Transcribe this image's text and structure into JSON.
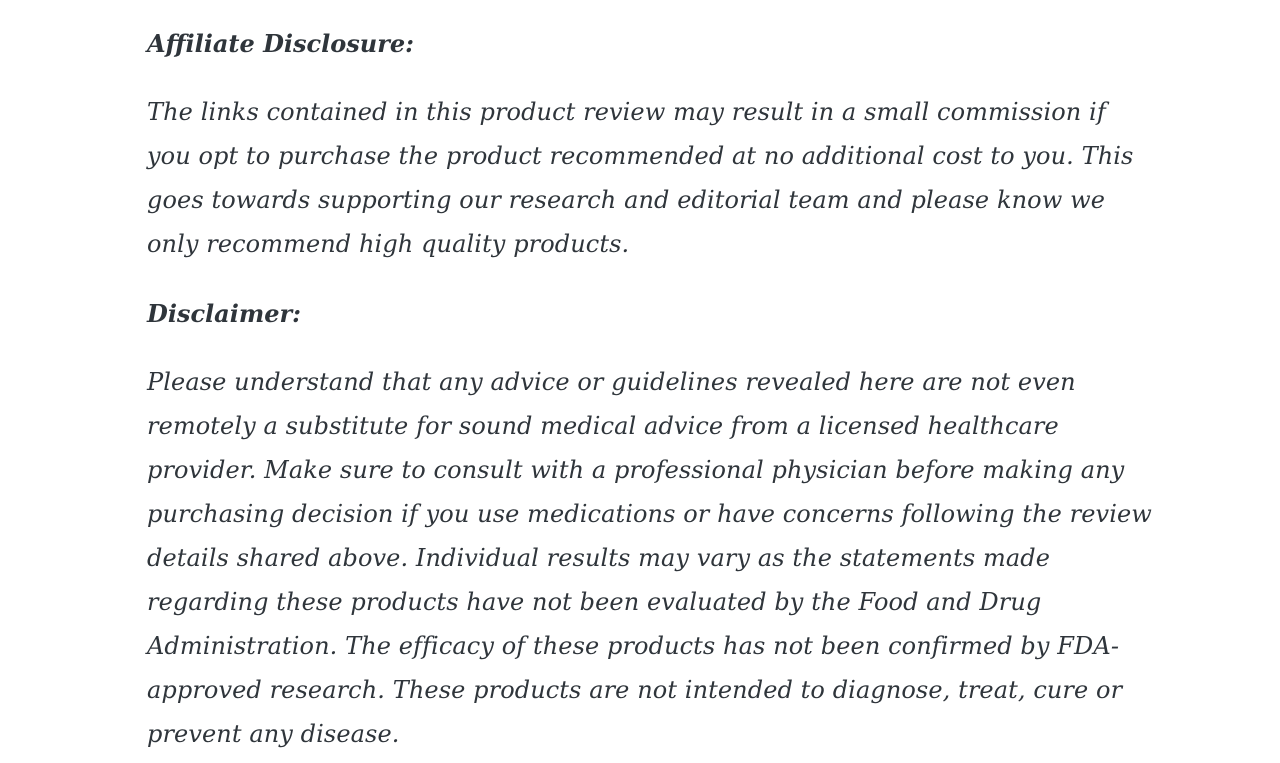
{
  "page": {
    "background_color": "#ffffff",
    "text_color": "#2f353b"
  },
  "content": {
    "affiliate": {
      "heading": "Affiliate Disclosure:",
      "body": "The links contained in this product review may result in a small commission if you opt to purchase the product recommended at no additional cost to you. This goes towards supporting our research and editorial team and please know we only recommend high quality products."
    },
    "disclaimer": {
      "heading": "Disclaimer:",
      "body": "Please understand that any advice or guidelines revealed here are not even remotely a substitute for sound medical advice from a licensed healthcare provider. Make sure to consult with a professional physician before making any purchasing decision if you use medications or have concerns following the review details shared above. Individual results may vary as the statements made regarding these products have not been evaluated by the Food and Drug Administration. The efficacy of these products has not been confirmed by FDA-approved research. These products are not intended to diagnose, treat, cure or prevent any disease."
    }
  }
}
